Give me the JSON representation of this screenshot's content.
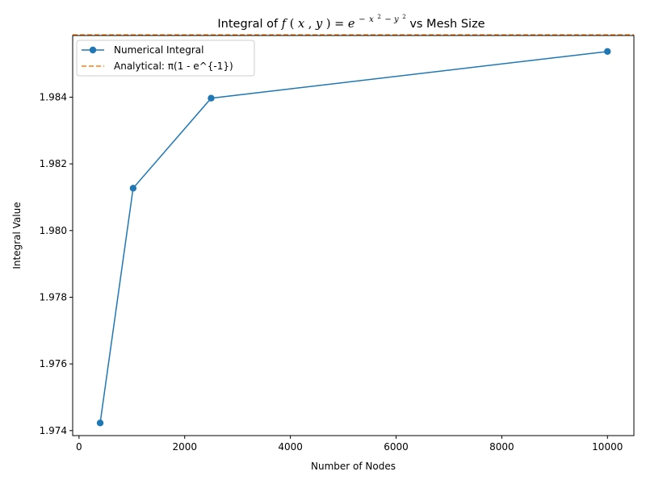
{
  "chart_data": {
    "type": "line",
    "title": {
      "prefix": "Integral of ",
      "f": "f",
      "args_open": "(",
      "arg_x": "x",
      "comma": ", ",
      "arg_y": "y",
      "args_close": ")",
      "equals": " = ",
      "base": "e",
      "exp_minus": "−",
      "exp_x": "x",
      "exp_sq1": "2",
      "exp_mid": " − ",
      "exp_y": "y",
      "exp_sq2": "2",
      "suffix": " vs Mesh Size"
    },
    "xlabel": "Number of Nodes",
    "ylabel": "Integral Value",
    "xlim": [
      -120,
      10500
    ],
    "ylim": [
      1.97385,
      1.98585
    ],
    "x_ticks": [
      0,
      2000,
      4000,
      6000,
      8000,
      10000
    ],
    "y_ticks": [
      1.974,
      1.976,
      1.978,
      1.98,
      1.982,
      1.984
    ],
    "y_tick_decimals": 3,
    "grid": false,
    "legend_position": "top-left",
    "series": [
      {
        "name": "Numerical Integral",
        "style": "line-marker",
        "color": "#1f77b4",
        "x": [
          400,
          1024,
          2500,
          10000
        ],
        "y": [
          1.97423,
          1.98127,
          1.98397,
          1.98537
        ]
      }
    ],
    "reference_lines": [
      {
        "name": "Analytical: π(1 - e^{-1})",
        "orientation": "horizontal",
        "style": "dashed",
        "color": "#ff7f0e",
        "y": 1.98587
      }
    ]
  }
}
